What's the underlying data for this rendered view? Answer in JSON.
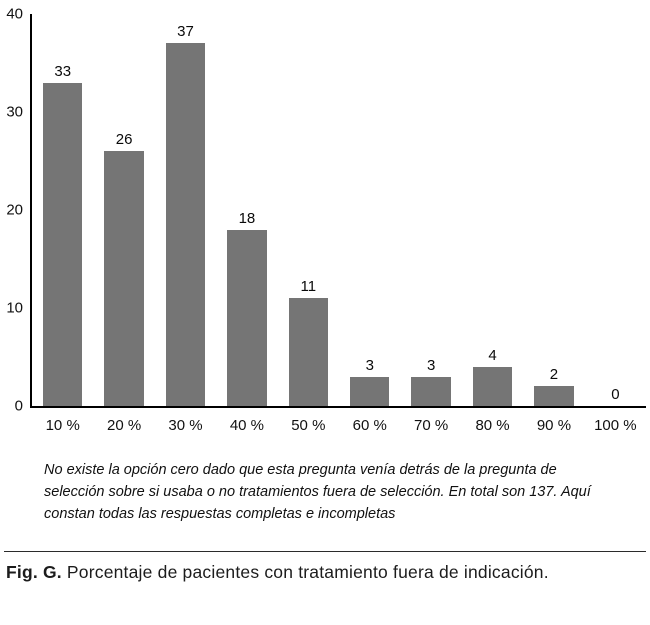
{
  "chart_data": {
    "type": "bar",
    "categories": [
      "10 %",
      "20 %",
      "30 %",
      "40 %",
      "50 %",
      "60 %",
      "70 %",
      "80 %",
      "90 %",
      "100 %"
    ],
    "values": [
      33,
      26,
      37,
      18,
      11,
      3,
      3,
      4,
      2,
      0
    ],
    "title": "",
    "xlabel": "",
    "ylabel": "",
    "ylim": [
      0,
      40
    ],
    "yticks": [
      0,
      10,
      20,
      30,
      40
    ],
    "bar_color": "#757575",
    "grid": false,
    "legend": false,
    "data_labels": true
  },
  "note": "No existe la opción cero dado que esta pregunta venía detrás de la pregunta de selección sobre si usaba o no tratamientos fuera de selección. En total son 137. Aquí constan todas las respuestas completas e incompletas",
  "caption": {
    "label": "Fig. G.",
    "text": "Porcentaje de pacientes con tratamiento fuera de indicación."
  }
}
